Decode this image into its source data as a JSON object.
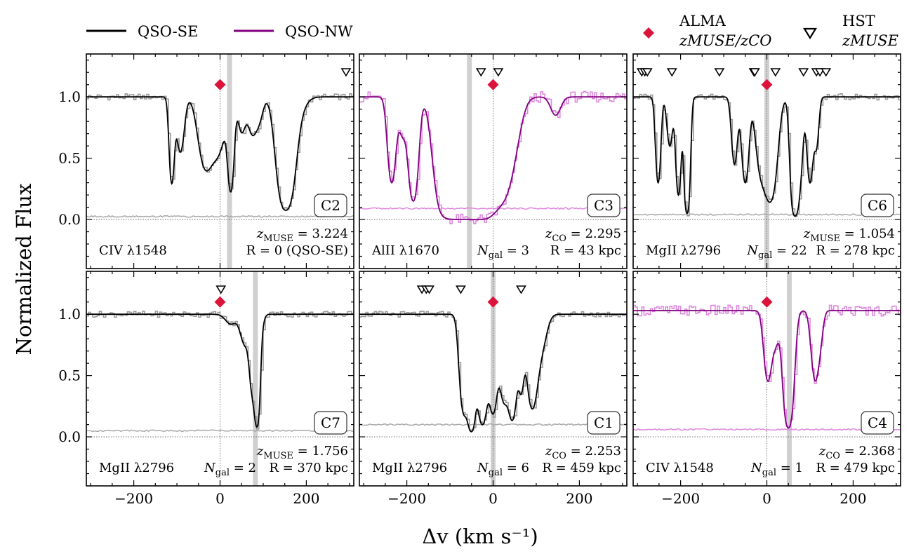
{
  "figure": {
    "ylabel": "Normalized Flux",
    "xlabel": "Δv (km s⁻¹)",
    "colors": {
      "qso_se": "#000000",
      "qso_nw": "#800080",
      "qso_nw_light": "#dd88dd",
      "data_grey": "#9a9a9a",
      "error_grey": "#a8a8a8",
      "alma": "#dc143c",
      "panel_label": "#4a90e2",
      "shade": "#d0d0d0"
    }
  },
  "legend": {
    "qso_se": "QSO-SE",
    "qso_nw": "QSO-NW",
    "alma_title": "ALMA",
    "alma_sub": "zMUSE/zCO",
    "hst_title": "HST",
    "hst_sub": "zMUSE"
  },
  "chart_data": [
    {
      "type": "line",
      "id": "C2",
      "series": "QSO-SE",
      "line_label": "CIV λ1548",
      "redshift": "z_MUSE = 3.224",
      "R": "R = 0 (QSO-SE)",
      "ngal": "",
      "xlim": [
        -310,
        310
      ],
      "ylim": [
        -0.4,
        1.35
      ],
      "xticks": [
        -200,
        0,
        200
      ],
      "yticks": [
        0.0,
        0.5,
        1.0
      ],
      "alma_v": 0,
      "alma_y": 1.1,
      "shade_v": 22,
      "hst_markers": [
        292
      ],
      "error_level": 0.025,
      "continuum": 1.0,
      "components": [
        {
          "v": -112,
          "depth": 0.7,
          "sigma": 5
        },
        {
          "v": -92,
          "depth": 0.45,
          "sigma": 8
        },
        {
          "v": -35,
          "depth": 0.55,
          "sigma": 14
        },
        {
          "v": -5,
          "depth": 0.45,
          "sigma": 16
        },
        {
          "v": 25,
          "depth": 0.75,
          "sigma": 6
        },
        {
          "v": 50,
          "depth": 0.28,
          "sigma": 8
        },
        {
          "v": 75,
          "depth": 0.3,
          "sigma": 10
        },
        {
          "v": 92,
          "depth": 0.15,
          "sigma": 8
        },
        {
          "v": 152,
          "depth": 0.92,
          "sigma": 15
        },
        {
          "v": 175,
          "depth": 0.15,
          "sigma": 18
        }
      ]
    },
    {
      "type": "line",
      "id": "C3",
      "series": "QSO-NW",
      "line_label": "AlII λ1670",
      "redshift": "z_CO = 2.295",
      "R": "R = 43 kpc",
      "ngal": "N_gal = 3",
      "xlim": [
        -310,
        310
      ],
      "ylim": [
        -0.4,
        1.35
      ],
      "xticks": [
        -200,
        0,
        200
      ],
      "yticks": [
        0.0,
        0.5,
        1.0
      ],
      "alma_v": 0,
      "alma_y": 1.1,
      "shade_v": -55,
      "hst_markers": [
        -28,
        12
      ],
      "error_level": 0.09,
      "continuum": 1.0,
      "components": [
        {
          "v": -235,
          "depth": 0.7,
          "sigma": 8
        },
        {
          "v": -210,
          "depth": 0.3,
          "sigma": 8
        },
        {
          "v": -185,
          "depth": 0.85,
          "sigma": 9
        },
        {
          "v": -110,
          "depth": 0.95,
          "sigma": 18
        },
        {
          "v": -75,
          "depth": 1.0,
          "sigma": 20
        },
        {
          "v": -40,
          "depth": 1.0,
          "sigma": 20
        },
        {
          "v": -5,
          "depth": 0.85,
          "sigma": 18
        },
        {
          "v": 22,
          "depth": 0.65,
          "sigma": 16
        },
        {
          "v": 42,
          "depth": 0.45,
          "sigma": 18
        },
        {
          "v": 145,
          "depth": 0.15,
          "sigma": 11
        }
      ]
    },
    {
      "type": "line",
      "id": "C6",
      "series": "QSO-SE",
      "line_label": "MgII λ2796",
      "redshift": "z_MUSE = 1.054",
      "R": "R = 278 kpc",
      "ngal": "N_gal = 22",
      "xlim": [
        -310,
        310
      ],
      "ylim": [
        -0.4,
        1.35
      ],
      "xticks": [
        -200,
        0,
        200
      ],
      "yticks": [
        0.0,
        0.5,
        1.0
      ],
      "alma_v": 0,
      "alma_y": 1.1,
      "shade_v": 0,
      "hst_markers": [
        -290,
        -283,
        -277,
        -220,
        -110,
        -30,
        -28,
        20,
        85,
        115,
        123,
        137
      ],
      "error_level": 0.04,
      "continuum": 1.0,
      "components": [
        {
          "v": -252,
          "depth": 0.7,
          "sigma": 5
        },
        {
          "v": -225,
          "depth": 0.4,
          "sigma": 6
        },
        {
          "v": -205,
          "depth": 0.8,
          "sigma": 5
        },
        {
          "v": -185,
          "depth": 0.95,
          "sigma": 5
        },
        {
          "v": -75,
          "depth": 0.55,
          "sigma": 6
        },
        {
          "v": -50,
          "depth": 0.7,
          "sigma": 7
        },
        {
          "v": -15,
          "depth": 0.55,
          "sigma": 10
        },
        {
          "v": 8,
          "depth": 0.85,
          "sigma": 12
        },
        {
          "v": 65,
          "depth": 0.97,
          "sigma": 7
        },
        {
          "v": 78,
          "depth": 0.5,
          "sigma": 6
        },
        {
          "v": 100,
          "depth": 0.7,
          "sigma": 6
        },
        {
          "v": 115,
          "depth": 0.4,
          "sigma": 5
        }
      ]
    },
    {
      "type": "line",
      "id": "C7",
      "series": "QSO-SE",
      "line_label": "MgII λ2796",
      "redshift": "z_MUSE = 1.756",
      "R": "R = 370 kpc",
      "ngal": "N_gal = 2",
      "xlim": [
        -310,
        310
      ],
      "ylim": [
        -0.4,
        1.35
      ],
      "xticks": [
        -200,
        0,
        200
      ],
      "yticks": [
        0.0,
        0.5,
        1.0
      ],
      "alma_v": 0,
      "alma_y": 1.1,
      "shade_v": 82,
      "hst_markers": [
        2
      ],
      "error_level": 0.05,
      "continuum": 1.0,
      "components": [
        {
          "v": 25,
          "depth": 0.08,
          "sigma": 12
        },
        {
          "v": 58,
          "depth": 0.25,
          "sigma": 10
        },
        {
          "v": 75,
          "depth": 0.6,
          "sigma": 6
        },
        {
          "v": 86,
          "depth": 0.9,
          "sigma": 5
        },
        {
          "v": 95,
          "depth": 0.1,
          "sigma": 6
        }
      ]
    },
    {
      "type": "line",
      "id": "C1",
      "series": "QSO-SE",
      "line_label": "MgII λ2796",
      "redshift": "z_CO = 2.253",
      "R": "R = 459 kpc",
      "ngal": "N_gal = 6",
      "xlim": [
        -310,
        310
      ],
      "ylim": [
        -0.4,
        1.35
      ],
      "xticks": [
        -200,
        0,
        200
      ],
      "yticks": [
        0.0,
        0.5,
        1.0
      ],
      "alma_v": 0,
      "alma_y": 1.1,
      "shade_v": 0,
      "hst_markers": [
        -165,
        -155,
        -148,
        -75,
        65
      ],
      "error_level": 0.1,
      "continuum": 1.0,
      "components": [
        {
          "v": -68,
          "depth": 0.8,
          "sigma": 8
        },
        {
          "v": -50,
          "depth": 0.95,
          "sigma": 7
        },
        {
          "v": -25,
          "depth": 0.9,
          "sigma": 9
        },
        {
          "v": 0,
          "depth": 0.8,
          "sigma": 8
        },
        {
          "v": 25,
          "depth": 0.7,
          "sigma": 9
        },
        {
          "v": 45,
          "depth": 0.85,
          "sigma": 8
        },
        {
          "v": 65,
          "depth": 0.6,
          "sigma": 6
        },
        {
          "v": 90,
          "depth": 0.75,
          "sigma": 10
        },
        {
          "v": 110,
          "depth": 0.3,
          "sigma": 12
        }
      ]
    },
    {
      "type": "line",
      "id": "C4",
      "series": "QSO-NW",
      "line_label": "CIV λ1548",
      "redshift": "z_CO = 2.368",
      "R": "R = 479 kpc",
      "ngal": "N_gal = 1",
      "xlim": [
        -310,
        310
      ],
      "ylim": [
        -0.4,
        1.35
      ],
      "xticks": [
        -200,
        0,
        200
      ],
      "yticks": [
        0.0,
        0.5,
        1.0
      ],
      "alma_v": 0,
      "alma_y": 1.1,
      "shade_v": 52,
      "hst_markers": [],
      "error_level": 0.06,
      "continuum": 1.03,
      "components": [
        {
          "v": 2,
          "depth": 0.55,
          "sigma": 8
        },
        {
          "v": 20,
          "depth": 0.25,
          "sigma": 8
        },
        {
          "v": 50,
          "depth": 0.93,
          "sigma": 9
        },
        {
          "v": 112,
          "depth": 0.55,
          "sigma": 8
        },
        {
          "v": 125,
          "depth": 0.15,
          "sigma": 6
        }
      ]
    }
  ]
}
